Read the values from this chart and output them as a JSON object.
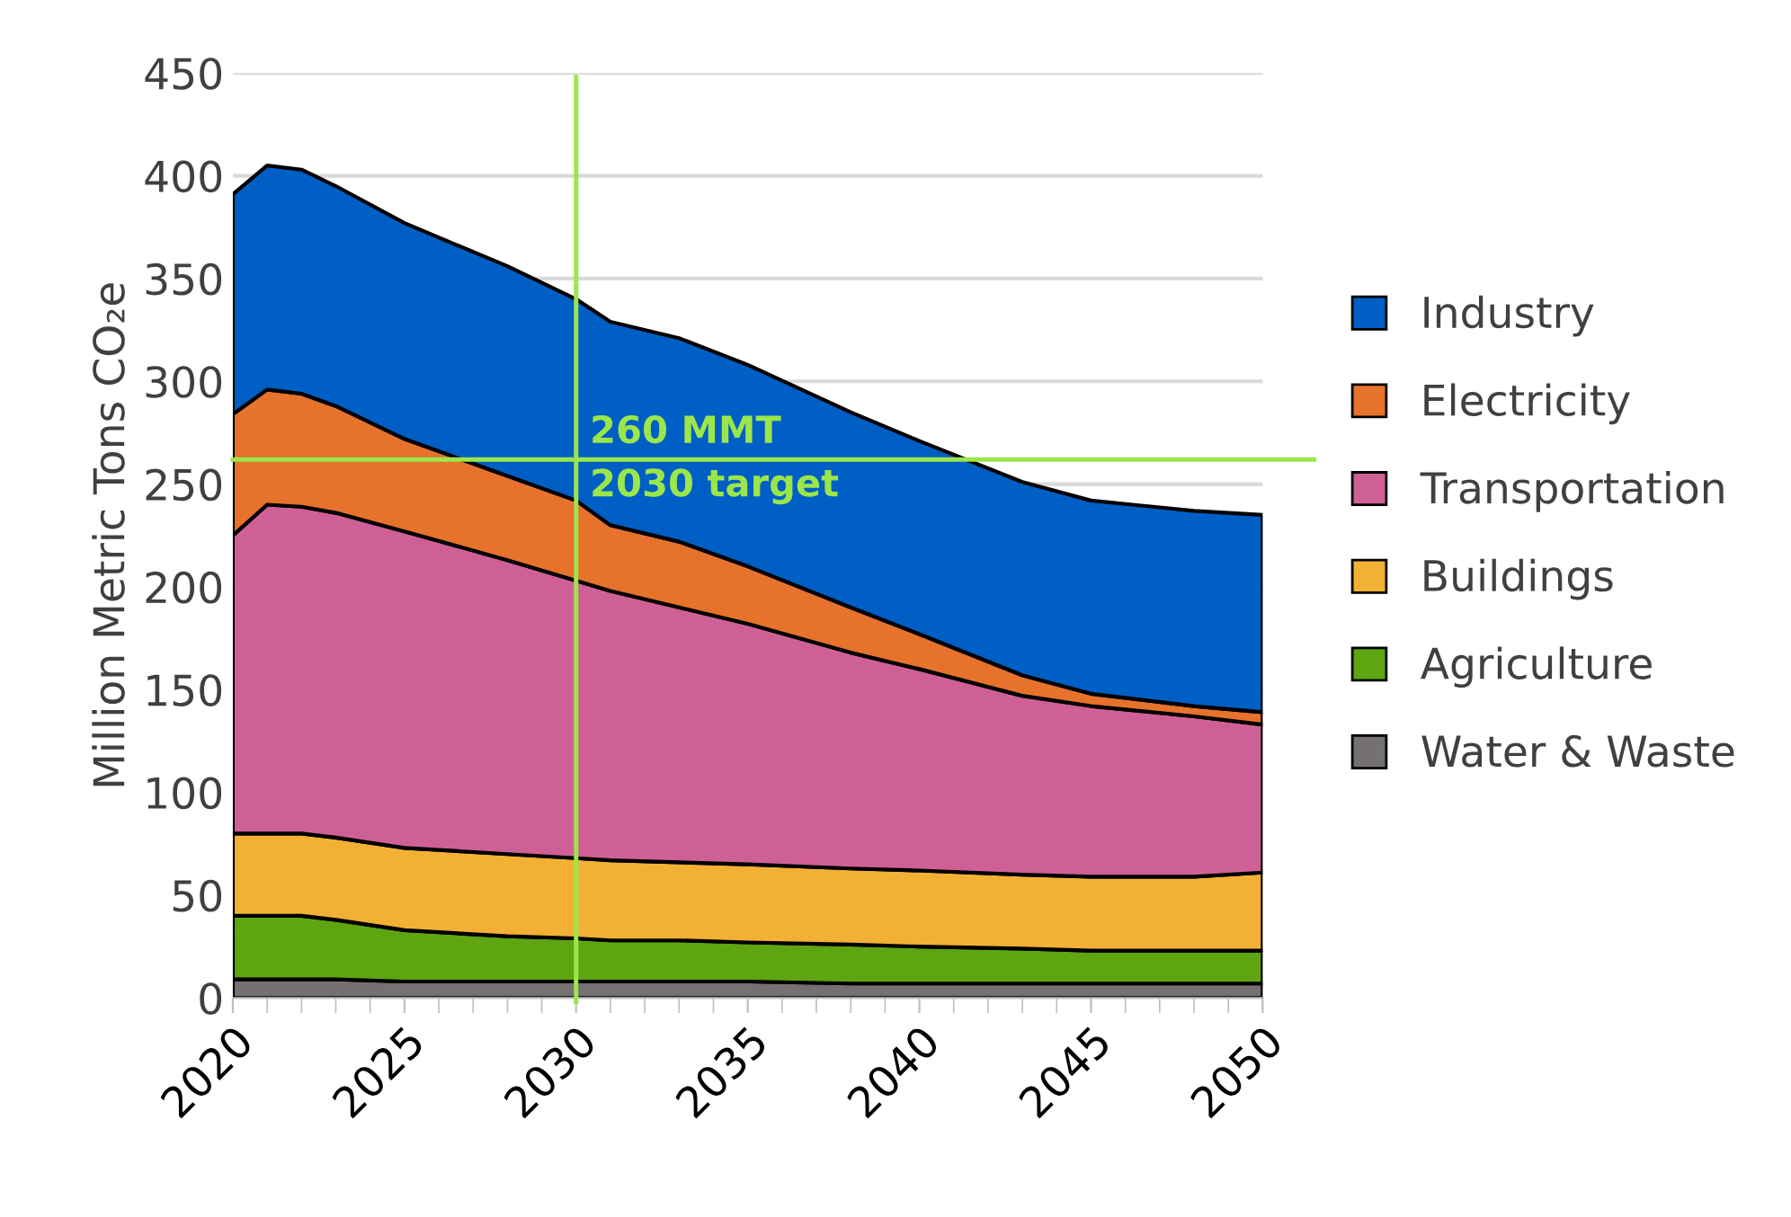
{
  "chart_data": {
    "type": "area",
    "stacked": true,
    "ylabel": "Million Metric Tons CO₂e",
    "x": [
      2020,
      2021,
      2022,
      2023,
      2025,
      2028,
      2030,
      2031,
      2033,
      2035,
      2038,
      2040,
      2043,
      2045,
      2048,
      2050
    ],
    "series": [
      {
        "name": "Water & Waste",
        "color": "#767171",
        "values": [
          9,
          9,
          9,
          9,
          8,
          8,
          8,
          8,
          8,
          8,
          7,
          7,
          7,
          7,
          7,
          7
        ]
      },
      {
        "name": "Agriculture",
        "color": "#5ea511",
        "values": [
          31,
          31,
          31,
          29,
          25,
          22,
          21,
          20,
          20,
          19,
          19,
          18,
          17,
          16,
          16,
          16
        ]
      },
      {
        "name": "Buildings",
        "color": "#f2b134",
        "values": [
          40,
          40,
          40,
          40,
          40,
          40,
          39,
          39,
          38,
          38,
          37,
          37,
          36,
          36,
          36,
          38
        ]
      },
      {
        "name": "Transportation",
        "color": "#cf6096",
        "values": [
          145,
          160,
          159,
          158,
          154,
          143,
          135,
          131,
          124,
          117,
          105,
          98,
          87,
          83,
          78,
          72
        ]
      },
      {
        "name": "Electricity",
        "color": "#e6722c",
        "values": [
          59,
          56,
          55,
          52,
          45,
          41,
          39,
          32,
          32,
          28,
          22,
          17,
          10,
          6,
          5,
          6
        ]
      },
      {
        "name": "Industry",
        "color": "#005fc4",
        "values": [
          107,
          109,
          109,
          107,
          105,
          102,
          98,
          99,
          99,
          98,
          95,
          94,
          94,
          94,
          95,
          96
        ]
      }
    ],
    "xlim": [
      2020,
      2050
    ],
    "xticks": [
      2020,
      2025,
      2030,
      2035,
      2040,
      2045,
      2050
    ],
    "ylim": [
      0,
      450
    ],
    "yticks": [
      0,
      50,
      100,
      150,
      200,
      250,
      300,
      350,
      400,
      450
    ],
    "grid": "y",
    "legend": "right",
    "ref_lines": [
      {
        "axis": "x",
        "value": 2030,
        "color": "#9be64a"
      },
      {
        "axis": "y",
        "value": 262,
        "label": "260 MMT\n2030 target",
        "color": "#9be64a"
      }
    ]
  }
}
